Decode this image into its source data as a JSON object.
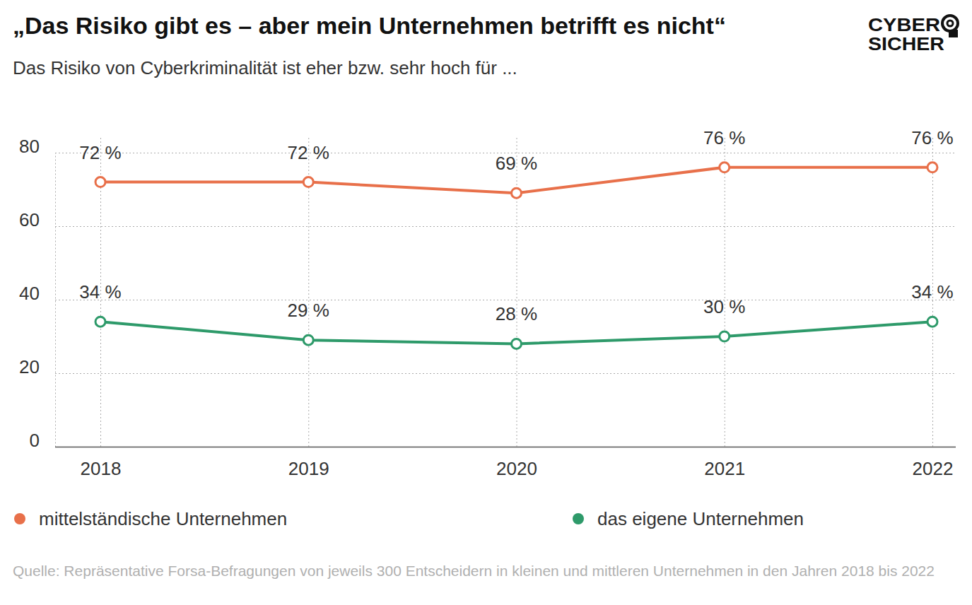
{
  "chart_data": {
    "type": "line",
    "title": "„Das Risiko gibt es – aber mein Unternehmen betrifft es nicht“",
    "subtitle": "Das Risiko von Cyberkriminalität ist eher bzw. sehr hoch für ...",
    "logo": [
      "CYBER",
      "SICHER"
    ],
    "source": "Quelle: Repräsentative Forsa-Befragungen von jeweils 300 Entscheidern in kleinen und mittleren Unternehmen in den Jahren 2018 bis 2022",
    "categories": [
      "2018",
      "2019",
      "2020",
      "2021",
      "2022"
    ],
    "series": [
      {
        "name": "mittelständische Unternehmen",
        "color": "#e8704a",
        "values": [
          72,
          72,
          69,
          76,
          76
        ],
        "value_labels": [
          "72 %",
          "72 %",
          "69 %",
          "76 %",
          "76 %"
        ]
      },
      {
        "name": "das eigene Unternehmen",
        "color": "#2e9a6a",
        "values": [
          34,
          29,
          28,
          30,
          34
        ],
        "value_labels": [
          "34 %",
          "29 %",
          "28 %",
          "30 %",
          "34 %"
        ]
      }
    ],
    "ylim": [
      0,
      80
    ],
    "yticks": [
      0,
      20,
      40,
      60,
      80
    ],
    "grid": true,
    "data_labels": true,
    "marker": "circle",
    "legend": "bottom"
  }
}
